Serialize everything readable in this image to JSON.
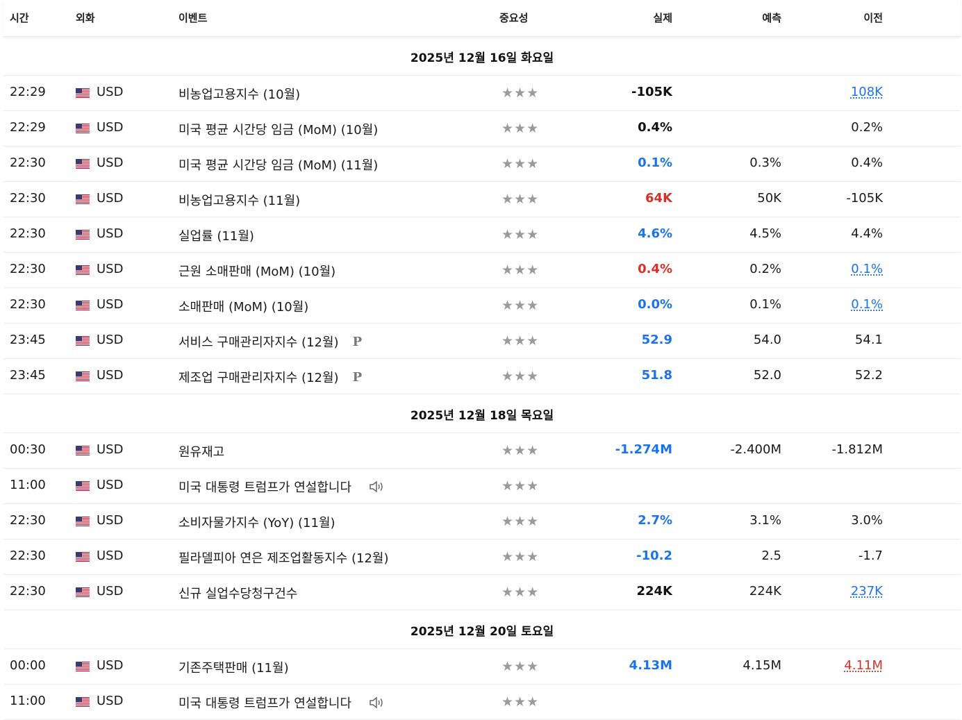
{
  "columns": {
    "time": "시간",
    "currency": "외화",
    "event": "이벤트",
    "importance": "중요성",
    "actual": "실제",
    "forecast": "예측",
    "previous": "이전"
  },
  "icons": {
    "flag": "us-flag-icon",
    "star": "star-icon",
    "speaker": "speaker-icon",
    "preliminary": "preliminary-p-icon"
  },
  "colors": {
    "positive": "#1a73e8",
    "negative": "#d93025",
    "star": "#9a9a9a"
  },
  "groups": [
    {
      "date": "2025년 12월 16일 화요일",
      "rows": [
        {
          "time": "22:29",
          "currency": "USD",
          "event": "비농업고용지수 (10월)",
          "stars": "★★★",
          "actual": "-105K",
          "actual_class": "neu",
          "forecast": "",
          "previous": "108K",
          "previous_class": "revised-blue"
        },
        {
          "time": "22:29",
          "currency": "USD",
          "event": "미국 평균 시간당 임금 (MoM) (10월)",
          "stars": "★★★",
          "actual": "0.4%",
          "actual_class": "neu",
          "forecast": "",
          "previous": "0.2%",
          "previous_class": ""
        },
        {
          "time": "22:30",
          "currency": "USD",
          "event": "미국 평균 시간당 임금 (MoM) (11월)",
          "stars": "★★★",
          "actual": "0.1%",
          "actual_class": "pos",
          "forecast": "0.3%",
          "previous": "0.4%",
          "previous_class": ""
        },
        {
          "time": "22:30",
          "currency": "USD",
          "event": "비농업고용지수 (11월)",
          "stars": "★★★",
          "actual": "64K",
          "actual_class": "neg",
          "forecast": "50K",
          "previous": "-105K",
          "previous_class": ""
        },
        {
          "time": "22:30",
          "currency": "USD",
          "event": "실업률 (11월)",
          "stars": "★★★",
          "actual": "4.6%",
          "actual_class": "pos",
          "forecast": "4.5%",
          "previous": "4.4%",
          "previous_class": ""
        },
        {
          "time": "22:30",
          "currency": "USD",
          "event": "근원 소매판매 (MoM) (10월)",
          "stars": "★★★",
          "actual": "0.4%",
          "actual_class": "neg",
          "forecast": "0.2%",
          "previous": "0.1%",
          "previous_class": "revised-blue"
        },
        {
          "time": "22:30",
          "currency": "USD",
          "event": "소매판매 (MoM) (10월)",
          "stars": "★★★",
          "actual": "0.0%",
          "actual_class": "pos",
          "forecast": "0.1%",
          "previous": "0.1%",
          "previous_class": "revised-blue"
        },
        {
          "time": "23:45",
          "currency": "USD",
          "event": "서비스 구매관리자지수 (12월)",
          "stars": "★★★",
          "actual": "52.9",
          "actual_class": "pos",
          "forecast": "54.0",
          "previous": "54.1",
          "previous_class": "",
          "prelim": "P"
        },
        {
          "time": "23:45",
          "currency": "USD",
          "event": "제조업 구매관리자지수 (12월)",
          "stars": "★★★",
          "actual": "51.8",
          "actual_class": "pos",
          "forecast": "52.0",
          "previous": "52.2",
          "previous_class": "",
          "prelim": "P"
        }
      ]
    },
    {
      "date": "2025년 12월 18일 목요일",
      "rows": [
        {
          "time": "00:30",
          "currency": "USD",
          "event": "원유재고",
          "stars": "★★★",
          "actual": "-1.274M",
          "actual_class": "pos",
          "forecast": "-2.400M",
          "previous": "-1.812M",
          "previous_class": ""
        },
        {
          "time": "11:00",
          "currency": "USD",
          "event": "미국 대통령 트럼프가 연설합니다",
          "stars": "★★★",
          "actual": "",
          "actual_class": "neu",
          "forecast": "",
          "previous": "",
          "previous_class": "",
          "speech": true
        },
        {
          "time": "22:30",
          "currency": "USD",
          "event": "소비자물가지수 (YoY) (11월)",
          "stars": "★★★",
          "actual": "2.7%",
          "actual_class": "pos",
          "forecast": "3.1%",
          "previous": "3.0%",
          "previous_class": ""
        },
        {
          "time": "22:30",
          "currency": "USD",
          "event": "필라델피아 연은 제조업활동지수 (12월)",
          "stars": "★★★",
          "actual": "-10.2",
          "actual_class": "pos",
          "forecast": "2.5",
          "previous": "-1.7",
          "previous_class": ""
        },
        {
          "time": "22:30",
          "currency": "USD",
          "event": "신규 실업수당청구건수",
          "stars": "★★★",
          "actual": "224K",
          "actual_class": "neu",
          "forecast": "224K",
          "previous": "237K",
          "previous_class": "revised-blue"
        }
      ]
    },
    {
      "date": "2025년 12월 20일 토요일",
      "rows": [
        {
          "time": "00:00",
          "currency": "USD",
          "event": "기존주택판매 (11월)",
          "stars": "★★★",
          "actual": "4.13M",
          "actual_class": "pos",
          "forecast": "4.15M",
          "previous": "4.11M",
          "previous_class": "revised-red"
        },
        {
          "time": "11:00",
          "currency": "USD",
          "event": "미국 대통령 트럼프가 연설합니다",
          "stars": "★★★",
          "actual": "",
          "actual_class": "neu",
          "forecast": "",
          "previous": "",
          "previous_class": "",
          "speech": true
        }
      ]
    }
  ]
}
